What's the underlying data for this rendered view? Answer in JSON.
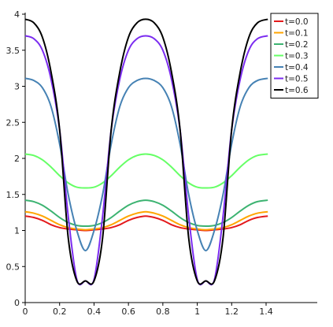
{
  "chart_data": {
    "type": "line",
    "title": "",
    "xlabel": "",
    "ylabel": "",
    "xlim": [
      0,
      1.4
    ],
    "ylim": [
      0,
      4
    ],
    "grid": false,
    "legend_position": "top-right",
    "x_ticks": [
      0,
      0.2,
      0.4,
      0.6,
      0.8,
      1,
      1.2,
      1.4
    ],
    "x_tick_labels": [
      "0",
      "0.2",
      "0.4",
      "0.6",
      "0.8",
      "1",
      "1.2",
      "1.4"
    ],
    "y_ticks": [
      0,
      0.5,
      1,
      1.5,
      2,
      2.5,
      3,
      3.5,
      4
    ],
    "y_tick_labels": [
      "0",
      "0.5",
      "1",
      "1.5",
      "2",
      "2.5",
      "3",
      "3.5",
      "4"
    ],
    "x": [
      0,
      0.05,
      0.1,
      0.15,
      0.2,
      0.25,
      0.3,
      0.35,
      0.4,
      0.45,
      0.5,
      0.55,
      0.6,
      0.65,
      0.7,
      0.75,
      0.8,
      0.85,
      0.9,
      0.95,
      1.0,
      1.05,
      1.1,
      1.15,
      1.2,
      1.25,
      1.3,
      1.35,
      1.41
    ],
    "series": [
      {
        "name": "t=0.0",
        "color": "#e41a1c",
        "values": [
          1.2,
          1.18,
          1.14,
          1.08,
          1.04,
          1.02,
          1.01,
          1.0,
          1.01,
          1.02,
          1.04,
          1.08,
          1.14,
          1.18,
          1.2,
          1.18,
          1.14,
          1.08,
          1.04,
          1.02,
          1.01,
          1.0,
          1.01,
          1.02,
          1.04,
          1.08,
          1.14,
          1.18,
          1.2
        ]
      },
      {
        "name": "t=0.1",
        "color": "#ffa500",
        "values": [
          1.26,
          1.24,
          1.2,
          1.14,
          1.08,
          1.04,
          1.02,
          1.01,
          1.02,
          1.04,
          1.08,
          1.14,
          1.2,
          1.24,
          1.26,
          1.24,
          1.2,
          1.14,
          1.08,
          1.04,
          1.02,
          1.01,
          1.02,
          1.04,
          1.08,
          1.14,
          1.2,
          1.24,
          1.26
        ]
      },
      {
        "name": "t=0.2",
        "color": "#3cb371",
        "values": [
          1.42,
          1.4,
          1.35,
          1.27,
          1.18,
          1.11,
          1.07,
          1.06,
          1.07,
          1.11,
          1.18,
          1.27,
          1.35,
          1.4,
          1.42,
          1.4,
          1.35,
          1.27,
          1.18,
          1.11,
          1.07,
          1.06,
          1.07,
          1.11,
          1.18,
          1.27,
          1.35,
          1.4,
          1.42
        ]
      },
      {
        "name": "t=0.3",
        "color": "#66ff66",
        "values": [
          2.06,
          2.04,
          1.98,
          1.88,
          1.76,
          1.66,
          1.6,
          1.59,
          1.6,
          1.66,
          1.76,
          1.88,
          1.98,
          2.04,
          2.06,
          2.04,
          1.98,
          1.88,
          1.76,
          1.66,
          1.6,
          1.59,
          1.6,
          1.66,
          1.76,
          1.88,
          1.98,
          2.04,
          2.06
        ]
      },
      {
        "name": "t=0.4",
        "color": "#4682b4",
        "values": [
          3.11,
          3.08,
          2.98,
          2.72,
          2.2,
          1.5,
          1.0,
          0.72,
          1.0,
          1.5,
          2.2,
          2.72,
          2.98,
          3.08,
          3.11,
          3.08,
          2.98,
          2.72,
          2.2,
          1.5,
          1.0,
          0.72,
          1.0,
          1.5,
          2.2,
          2.72,
          2.98,
          3.08,
          3.11
        ]
      },
      {
        "name": "t=0.5",
        "color": "#7b2cf0",
        "values": [
          3.7,
          3.66,
          3.5,
          3.1,
          2.4,
          1.2,
          0.32,
          0.3,
          0.32,
          1.2,
          2.4,
          3.1,
          3.5,
          3.66,
          3.7,
          3.66,
          3.5,
          3.1,
          2.4,
          1.2,
          0.32,
          0.3,
          0.32,
          1.2,
          2.4,
          3.1,
          3.5,
          3.66,
          3.7
        ]
      },
      {
        "name": "t=0.6",
        "color": "#000000",
        "values": [
          3.93,
          3.88,
          3.68,
          3.2,
          2.4,
          0.9,
          0.3,
          0.3,
          0.3,
          0.9,
          2.4,
          3.2,
          3.68,
          3.88,
          3.93,
          3.88,
          3.68,
          3.2,
          2.4,
          0.9,
          0.3,
          0.3,
          0.3,
          0.9,
          2.4,
          3.2,
          3.68,
          3.88,
          3.93
        ]
      }
    ]
  }
}
